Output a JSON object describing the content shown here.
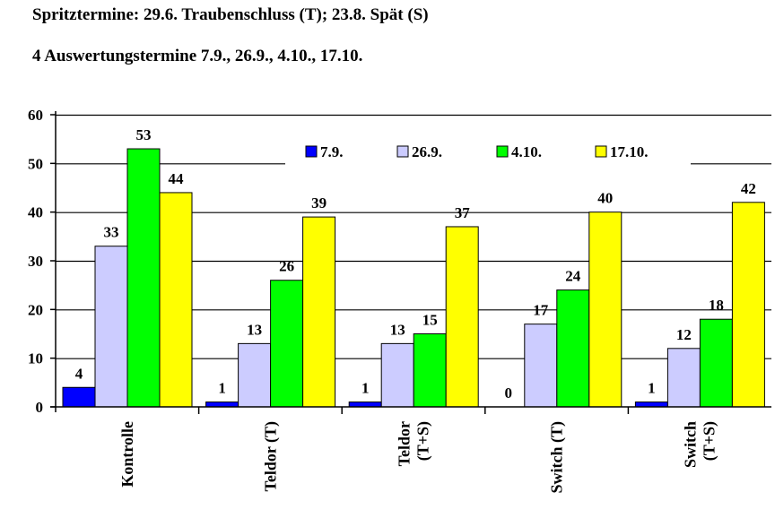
{
  "header": {
    "line1": "Spritztermine: 29.6. Traubenschluss (T); 23.8. Spät (S)",
    "line2": "4 Auswertungstermine 7.9., 26.9., 4.10., 17.10."
  },
  "chart_data": {
    "type": "bar",
    "categories": [
      [
        "Kontrolle"
      ],
      [
        "Teldor (T)"
      ],
      [
        "Teldor",
        "(T+S)"
      ],
      [
        "Switch (T)"
      ],
      [
        "Switch",
        "(T+S)"
      ]
    ],
    "series": [
      {
        "name": "7.9.",
        "color": "#0000ff",
        "values": [
          4,
          1,
          1,
          0,
          1
        ]
      },
      {
        "name": "26.9.",
        "color": "#ccccff",
        "values": [
          33,
          13,
          13,
          17,
          12
        ]
      },
      {
        "name": "4.10.",
        "color": "#00ff00",
        "values": [
          53,
          26,
          15,
          24,
          18
        ]
      },
      {
        "name": "17.10.",
        "color": "#ffff00",
        "values": [
          44,
          39,
          37,
          40,
          42
        ]
      }
    ],
    "ylim": [
      0,
      60
    ],
    "yticks": [
      0,
      10,
      20,
      30,
      40,
      50,
      60
    ],
    "data_labels": true,
    "grid": "horizontal",
    "legend": "top-right"
  }
}
